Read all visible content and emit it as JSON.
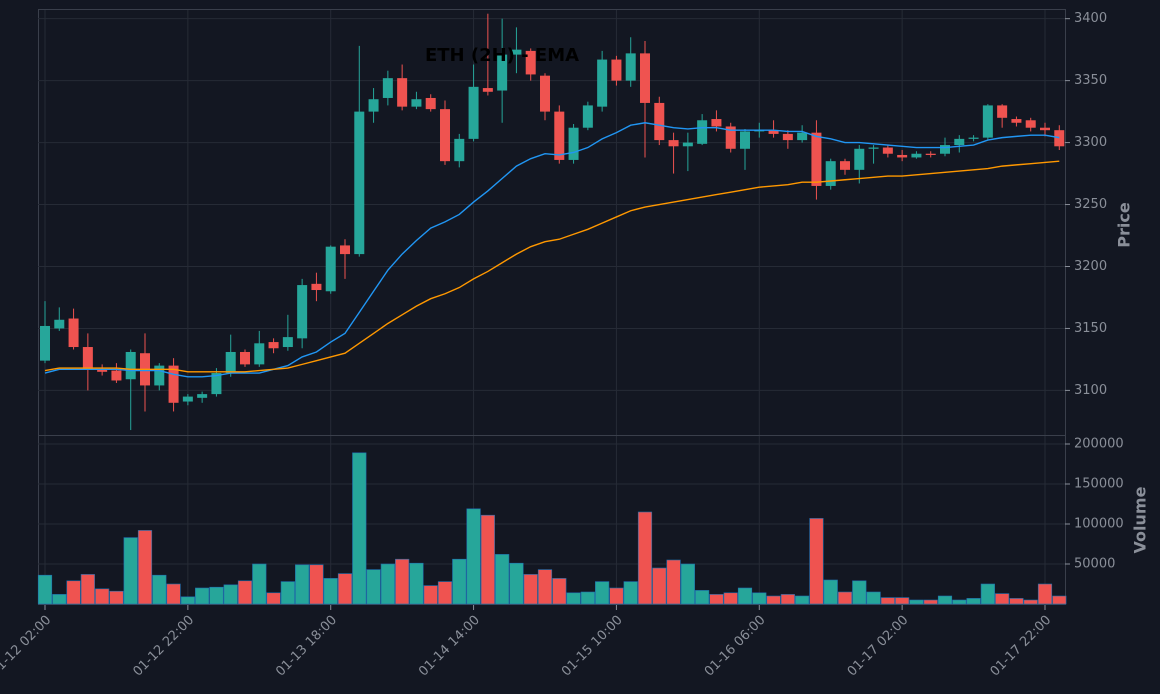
{
  "chart_data": [
    {
      "type": "candlestick",
      "title": "ETH (2H) - EMA",
      "ylabel": "Price",
      "categories": [
        "01-12 02:00",
        null,
        null,
        null,
        null,
        null,
        null,
        null,
        null,
        null,
        "01-12 22:00",
        null,
        null,
        null,
        null,
        null,
        null,
        null,
        null,
        null,
        "01-13 18:00",
        null,
        null,
        null,
        null,
        null,
        null,
        null,
        null,
        null,
        "01-14 14:00",
        null,
        null,
        null,
        null,
        null,
        null,
        null,
        null,
        null,
        "01-15 10:00",
        null,
        null,
        null,
        null,
        null,
        null,
        null,
        null,
        null,
        "01-16 06:00",
        null,
        null,
        null,
        null,
        null,
        null,
        null,
        null,
        null,
        "01-17 02:00",
        null,
        null,
        null,
        null,
        null,
        null,
        null,
        null,
        null,
        "01-17 22:00",
        null
      ],
      "open": [
        3124,
        3150,
        3158,
        3135,
        3117,
        3116,
        3109,
        3130,
        3104,
        3120,
        3091,
        3094,
        3097,
        3114,
        3131,
        3121,
        3139,
        3135,
        3142,
        3186,
        3180,
        3217,
        3210,
        3325,
        3336,
        3352,
        3329,
        3336,
        3327,
        3285,
        3303,
        3344,
        3342,
        3371,
        3374,
        3354,
        3325,
        3286,
        3312,
        3329,
        3367,
        3350,
        3372,
        3332,
        3302,
        3297,
        3299,
        3319,
        3313,
        3295,
        3309,
        3310,
        3307,
        3302,
        3308,
        3265,
        3285,
        3278,
        3295,
        3296,
        3290,
        3288,
        3291,
        3291,
        3298,
        3303,
        3304,
        3330,
        3319,
        3318,
        3312,
        3310
      ],
      "high": [
        3172,
        3167,
        3166,
        3146,
        3121,
        3122,
        3133,
        3146,
        3122,
        3126,
        3097,
        3099,
        3118,
        3145,
        3133,
        3148,
        3142,
        3161,
        3190,
        3195,
        3217,
        3222,
        3378,
        3344,
        3358,
        3363,
        3341,
        3339,
        3334,
        3307,
        3363,
        3404,
        3400,
        3393,
        3376,
        3356,
        3330,
        3315,
        3333,
        3374,
        3370,
        3385,
        3382,
        3337,
        3308,
        3308,
        3323,
        3326,
        3316,
        3311,
        3316,
        3318,
        3310,
        3314,
        3318,
        3287,
        3287,
        3298,
        3298,
        3298,
        3294,
        3293,
        3293,
        3304,
        3306,
        3306,
        3331,
        3331,
        3321,
        3320,
        3316,
        3314
      ],
      "low": [
        3122,
        3148,
        3133,
        3100,
        3112,
        3106,
        3068,
        3083,
        3100,
        3083,
        3088,
        3090,
        3095,
        3111,
        3119,
        3119,
        3130,
        3132,
        3134,
        3172,
        3178,
        3190,
        3208,
        3316,
        3330,
        3326,
        3327,
        3325,
        3282,
        3280,
        3301,
        3338,
        3316,
        3356,
        3350,
        3318,
        3283,
        3283,
        3310,
        3325,
        3346,
        3345,
        3288,
        3298,
        3275,
        3277,
        3298,
        3309,
        3292,
        3278,
        3304,
        3304,
        3295,
        3300,
        3254,
        3262,
        3274,
        3267,
        3283,
        3288,
        3285,
        3287,
        3288,
        3289,
        3292,
        3301,
        3302,
        3312,
        3313,
        3309,
        3305,
        3294
      ],
      "close": [
        3152,
        3157,
        3135,
        3117,
        3115,
        3108,
        3131,
        3104,
        3120,
        3090,
        3095,
        3097,
        3114,
        3131,
        3121,
        3138,
        3134,
        3143,
        3185,
        3181,
        3216,
        3210,
        3325,
        3335,
        3352,
        3329,
        3335,
        3327,
        3285,
        3303,
        3345,
        3341,
        3371,
        3375,
        3355,
        3325,
        3286,
        3312,
        3330,
        3367,
        3350,
        3372,
        3332,
        3302,
        3297,
        3300,
        3318,
        3313,
        3295,
        3309,
        3310,
        3307,
        3302,
        3308,
        3265,
        3285,
        3278,
        3295,
        3296,
        3291,
        3288,
        3291,
        3290,
        3298,
        3303,
        3304,
        3330,
        3320,
        3316,
        3312,
        3310,
        3297
      ],
      "up_color": "#26a69a",
      "down_color": "#ef5350",
      "series": [
        {
          "color": "#2196f3",
          "values": [
            3114,
            3117,
            3117,
            3117,
            3117,
            3117,
            3116,
            3116,
            3116,
            3113,
            3111,
            3111,
            3112,
            3114,
            3114,
            3114,
            3117,
            3120,
            3127,
            3131,
            3139,
            3146,
            3163,
            3180,
            3197,
            3210,
            3221,
            3231,
            3236,
            3242,
            3252,
            3261,
            3271,
            3281,
            3287,
            3291,
            3290,
            3292,
            3296,
            3303,
            3308,
            3314,
            3316,
            3314,
            3312,
            3311,
            3312,
            3312,
            3310,
            3310,
            3310,
            3310,
            3309,
            3309,
            3305,
            3303,
            3300,
            3300,
            3299,
            3298,
            3297,
            3296,
            3296,
            3296,
            3297,
            3298,
            3302,
            3304,
            3305,
            3306,
            3306,
            3304
          ]
        },
        {
          "color": "#ff9800",
          "values": [
            3116,
            3118,
            3118,
            3118,
            3118,
            3118,
            3117,
            3117,
            3117,
            3117,
            3115,
            3115,
            3115,
            3115,
            3115,
            3116,
            3117,
            3118,
            3121,
            3124,
            3127,
            3130,
            3138,
            3146,
            3154,
            3161,
            3168,
            3174,
            3178,
            3183,
            3190,
            3196,
            3203,
            3210,
            3216,
            3220,
            3222,
            3226,
            3230,
            3235,
            3240,
            3245,
            3248,
            3250,
            3252,
            3254,
            3256,
            3258,
            3260,
            3262,
            3264,
            3265,
            3266,
            3268,
            3268,
            3269,
            3270,
            3271,
            3272,
            3273,
            3273,
            3274,
            3275,
            3276,
            3277,
            3278,
            3279,
            3281,
            3282,
            3283,
            3284,
            3285
          ]
        }
      ],
      "ylim": [
        3064,
        3407
      ],
      "yticks": [
        3100,
        3150,
        3200,
        3250,
        3300,
        3350,
        3400
      ],
      "grid": true
    },
    {
      "type": "bar",
      "ylabel": "Volume",
      "values": [
        36000,
        12000,
        29000,
        37000,
        19000,
        16000,
        83000,
        92000,
        36000,
        25000,
        9000,
        20000,
        21000,
        24000,
        29000,
        50000,
        14000,
        28000,
        49000,
        49000,
        32000,
        38000,
        189000,
        43000,
        50000,
        56000,
        51000,
        23000,
        28000,
        56000,
        119000,
        111000,
        62000,
        51000,
        37000,
        43000,
        32000,
        14000,
        15000,
        28000,
        20000,
        28000,
        115000,
        45000,
        55000,
        50000,
        17000,
        12000,
        14000,
        20000,
        14000,
        10000,
        12000,
        10000,
        107000,
        30000,
        15000,
        29000,
        15000,
        8000,
        8000,
        5000,
        5000,
        10000,
        5000,
        7000,
        25000,
        13000,
        7000,
        5000,
        25000,
        10000
      ],
      "ylim": [
        0,
        210000
      ],
      "yticks": [
        50000,
        100000,
        150000,
        200000
      ],
      "grid": true
    }
  ]
}
